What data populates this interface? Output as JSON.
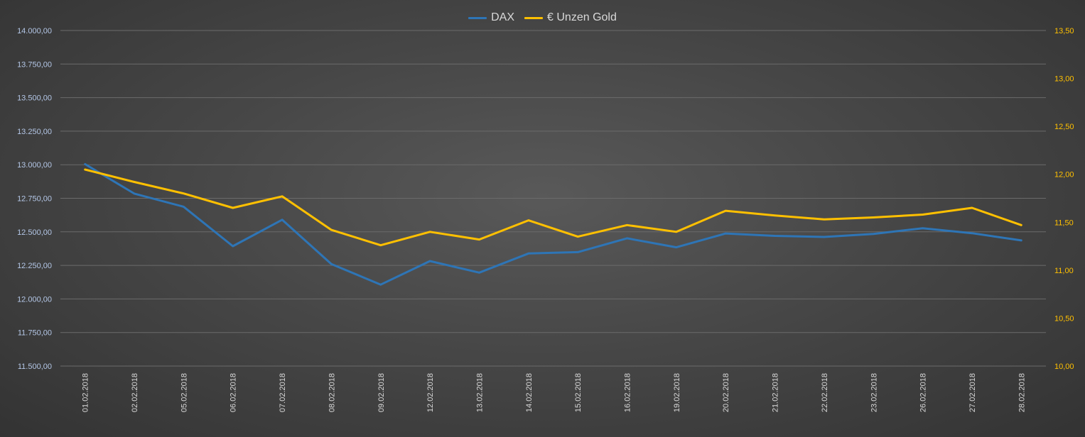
{
  "chart_data": {
    "type": "line",
    "categories": [
      "01.02.2018",
      "02.02.2018",
      "05.02.2018",
      "06.02.2018",
      "07.02.2018",
      "08.02.2018",
      "09.02.2018",
      "12.02.2018",
      "13.02.2018",
      "14.02.2018",
      "15.02.2018",
      "16.02.2018",
      "19.02.2018",
      "20.02.2018",
      "21.02.2018",
      "22.02.2018",
      "23.02.2018",
      "26.02.2018",
      "27.02.2018",
      "28.02.2018"
    ],
    "series": [
      {
        "name": "DAX",
        "axis": "left",
        "color": "#2e75b6",
        "values": [
          13004,
          12785,
          12687,
          12393,
          12590,
          12260,
          12107,
          12282,
          12196,
          12339,
          12349,
          12452,
          12385,
          12488,
          12470,
          12462,
          12484,
          12527,
          12490,
          12436
        ]
      },
      {
        "name": "€ Unzen Gold",
        "axis": "right",
        "color": "#ffc000",
        "values": [
          12.05,
          11.92,
          11.8,
          11.65,
          11.77,
          11.42,
          11.26,
          11.4,
          11.32,
          11.52,
          11.35,
          11.47,
          11.4,
          11.62,
          11.57,
          11.53,
          11.55,
          11.58,
          11.65,
          11.47
        ]
      }
    ],
    "y_left": {
      "min": 11500,
      "max": 14000,
      "step": 250,
      "tick_labels": [
        "11.500,00",
        "11.750,00",
        "12.000,00",
        "12.250,00",
        "12.500,00",
        "12.750,00",
        "13.000,00",
        "13.250,00",
        "13.500,00",
        "13.750,00",
        "14.000,00"
      ]
    },
    "y_right": {
      "min": 10,
      "max": 13.5,
      "step": 0.5,
      "tick_labels": [
        "10,00",
        "10,50",
        "11,00",
        "11,50",
        "12,00",
        "12,50",
        "13,00",
        "13,50"
      ]
    },
    "grid": true,
    "legend_position": "top-center",
    "colors": {
      "grid": "#6b6b6b",
      "axis_text_left": "#b4c7e7",
      "axis_text_right": "#ffc000",
      "x_text": "#d9d9d9",
      "legend_text": "#d9d9d9"
    }
  }
}
